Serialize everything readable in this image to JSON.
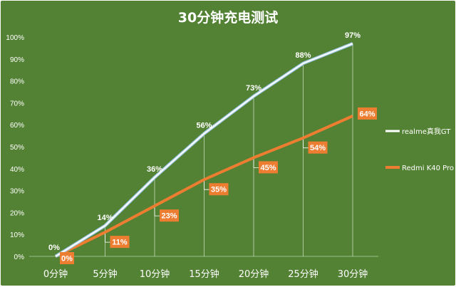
{
  "chart_data": {
    "type": "line",
    "title": "30分钟充电测试",
    "categories": [
      "0分钟",
      "5分钟",
      "10分钟",
      "15分钟",
      "20分钟",
      "25分钟",
      "30分钟"
    ],
    "ylim": [
      0,
      100
    ],
    "yticks": [
      "0%",
      "10%",
      "20%",
      "30%",
      "40%",
      "50%",
      "60%",
      "70%",
      "80%",
      "90%",
      "100%"
    ],
    "legend_position": "right",
    "series": [
      {
        "name": "realme真我GT",
        "color": "#ffffff",
        "values": [
          0,
          14,
          36,
          56,
          73,
          88,
          97
        ],
        "labels": [
          "0%",
          "14%",
          "36%",
          "56%",
          "73%",
          "88%",
          "97%"
        ]
      },
      {
        "name": "Redmi K40 Pro",
        "color": "#ed7d31",
        "values": [
          0,
          11,
          23,
          35,
          45,
          54,
          64
        ],
        "labels": [
          "0%",
          "11%",
          "23%",
          "35%",
          "45%",
          "54%",
          "64%"
        ]
      }
    ]
  }
}
